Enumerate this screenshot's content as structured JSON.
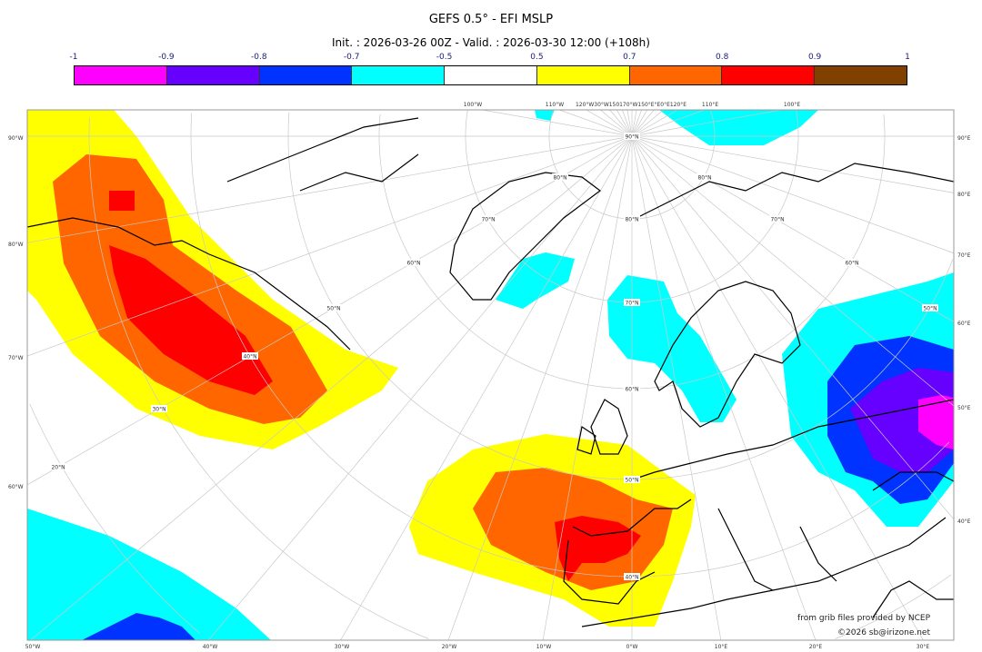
{
  "header": {
    "title": "GEFS 0.5° - EFI MSLP",
    "subtitle": "Init. : 2026-03-26 00Z - Valid. : 2026-03-30 12:00 (+108h)"
  },
  "colorbar": {
    "ticks": [
      "-1",
      "-0.9",
      "-0.8",
      "-0.7",
      "-0.5",
      "0.5",
      "0.7",
      "0.8",
      "0.9",
      "1"
    ],
    "colors": [
      "#ff00ff",
      "#6600ff",
      "#0033ff",
      "#00ffff",
      "#ffffff",
      "#ffff00",
      "#ff6600",
      "#ff0000",
      "#804000"
    ]
  },
  "map": {
    "projection": "polar stereographic",
    "bottom_labels": [
      "50°W",
      "40°W",
      "30°W",
      "20°W",
      "10°W",
      "0°W",
      "10°E",
      "20°E",
      "30°E"
    ],
    "left_labels": [
      "90°W",
      "80°W",
      "70°W",
      "60°W"
    ],
    "right_labels": [
      "90°E",
      "80°E",
      "70°E",
      "60°E",
      "50°E",
      "40°E"
    ],
    "top_labels": [
      "100°W",
      "110°W",
      "120°W30°W150170°W150°E°E0°E120°E",
      "110°E",
      "100°E"
    ],
    "lat_labels": [
      "90°N",
      "80°N",
      "70°N",
      "60°N",
      "50°N",
      "40°N",
      "30°N",
      "20°N",
      "80°N",
      "70°N",
      "60°N",
      "50°N",
      "40°N",
      "80°N",
      "70°N",
      "60°N",
      "50°N"
    ]
  },
  "credits": {
    "source": "from grib files provided by NCEP",
    "copyright": "©2026 sb@irizone.net"
  }
}
